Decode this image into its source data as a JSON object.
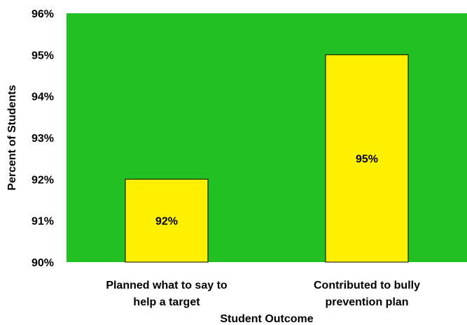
{
  "chart_data": {
    "type": "bar",
    "categories": [
      [
        "Planned what to say to",
        "help a target"
      ],
      [
        "Contributed to bully",
        "prevention plan"
      ]
    ],
    "values": [
      92,
      95
    ],
    "data_labels": [
      "92%",
      "95%"
    ],
    "xlabel": "Student Outcome",
    "ylabel": "Percent of Students",
    "ylim": [
      90,
      96
    ],
    "yticks": [
      90,
      91,
      92,
      93,
      94,
      95,
      96
    ],
    "ytick_labels": [
      "90%",
      "91%",
      "92%",
      "93%",
      "94%",
      "95%",
      "96%"
    ],
    "grid": false,
    "legend": "none",
    "colors": {
      "plot_background": "#22c022",
      "bar_fill": "#ffef00",
      "bar_edge": "#000000",
      "text": "#000000"
    }
  }
}
